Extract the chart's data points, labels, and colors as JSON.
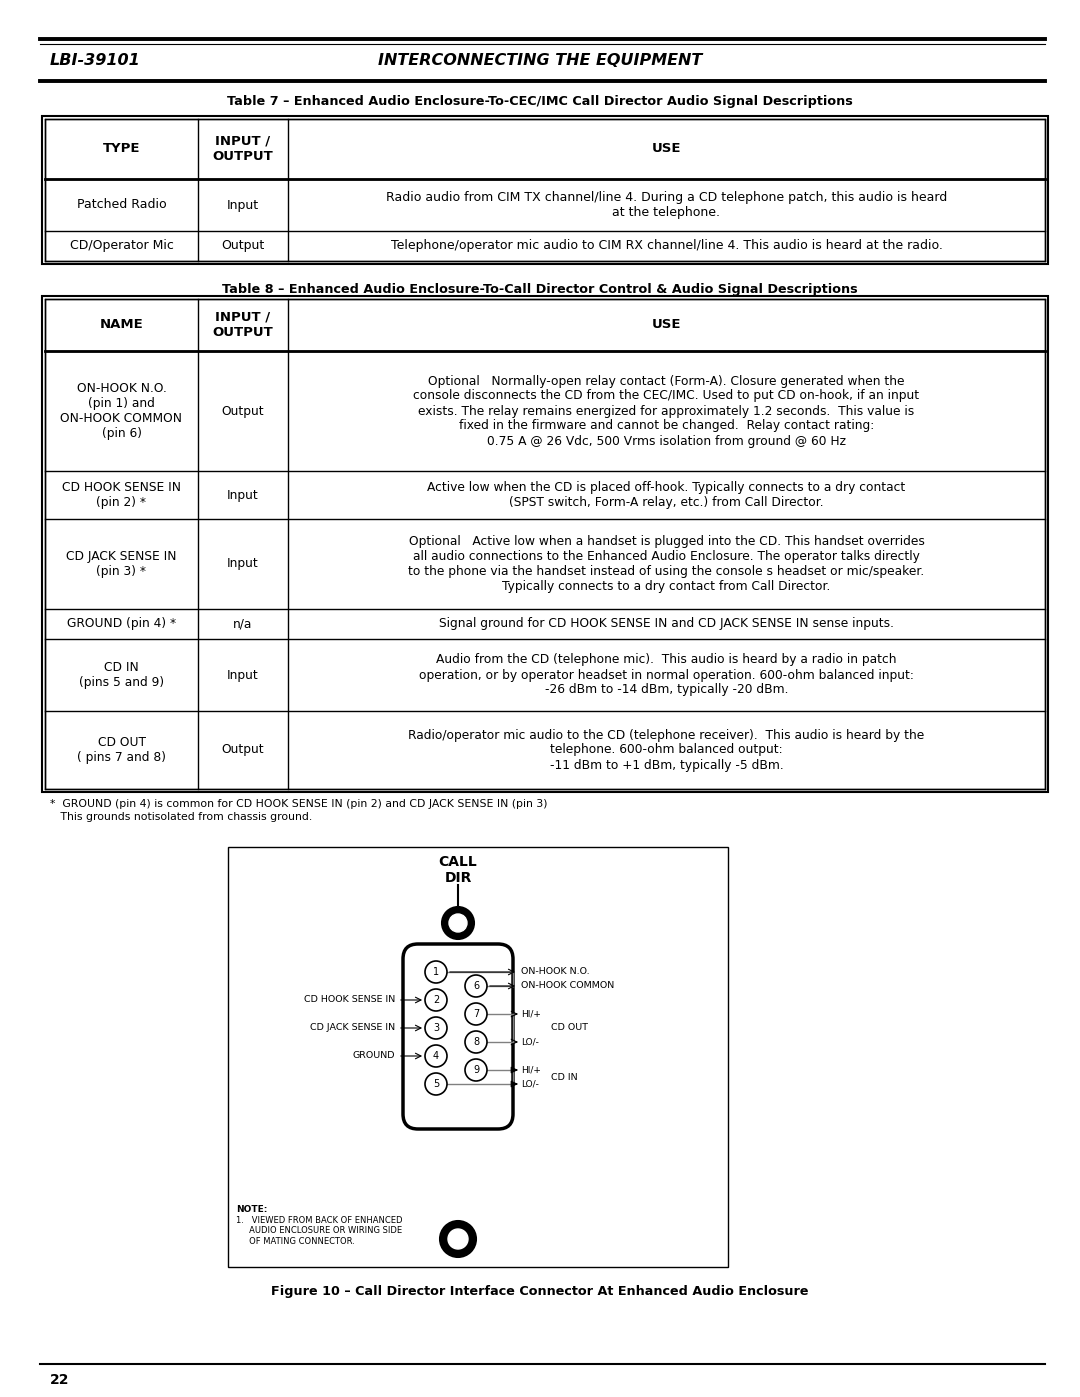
{
  "header_left": "LBI-39101",
  "header_center": "INTERCONNECTING THE EQUIPMENT",
  "page_number": "22",
  "table7_title": "Table 7 – Enhanced Audio Enclosure-To-CEC/IMC Call Director Audio Signal Descriptions",
  "table8_title": "Table 8 – Enhanced Audio Enclosure-To-Call Director Control & Audio Signal Descriptions",
  "footnote_line1": "*  GROUND (pin 4) is common for CD HOOK SENSE IN (pin 2) and CD JACK SENSE IN (pin 3)",
  "footnote_line2": "   This grounds notisolated from chassis ground.",
  "fig_caption": "Figure 10 – Call Director Interface Connector At Enhanced Audio Enclosure",
  "bg_color": "#ffffff"
}
